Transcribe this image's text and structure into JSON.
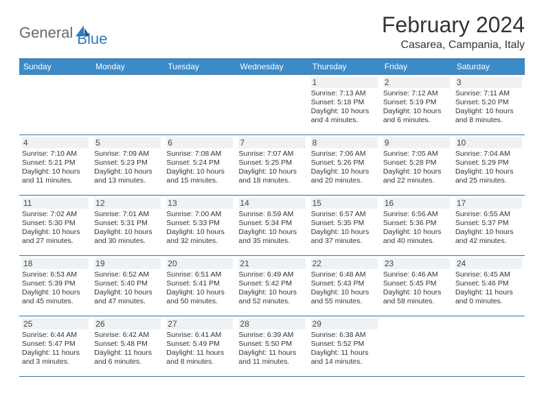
{
  "brand": {
    "part1": "General",
    "part2": "Blue"
  },
  "title": "February 2024",
  "location": "Casarea, Campania, Italy",
  "colors": {
    "header_bg": "#3b8bc9",
    "border": "#2f6fa3",
    "brand_blue": "#2f7bbf",
    "brand_gray": "#5f6a72"
  },
  "daynames": [
    "Sunday",
    "Monday",
    "Tuesday",
    "Wednesday",
    "Thursday",
    "Friday",
    "Saturday"
  ],
  "weeks": [
    [
      {
        "n": "",
        "sr": "",
        "ss": "",
        "d1": "",
        "d2": ""
      },
      {
        "n": "",
        "sr": "",
        "ss": "",
        "d1": "",
        "d2": ""
      },
      {
        "n": "",
        "sr": "",
        "ss": "",
        "d1": "",
        "d2": ""
      },
      {
        "n": "",
        "sr": "",
        "ss": "",
        "d1": "",
        "d2": ""
      },
      {
        "n": "1",
        "sr": "Sunrise: 7:13 AM",
        "ss": "Sunset: 5:18 PM",
        "d1": "Daylight: 10 hours",
        "d2": "and 4 minutes."
      },
      {
        "n": "2",
        "sr": "Sunrise: 7:12 AM",
        "ss": "Sunset: 5:19 PM",
        "d1": "Daylight: 10 hours",
        "d2": "and 6 minutes."
      },
      {
        "n": "3",
        "sr": "Sunrise: 7:11 AM",
        "ss": "Sunset: 5:20 PM",
        "d1": "Daylight: 10 hours",
        "d2": "and 8 minutes."
      }
    ],
    [
      {
        "n": "4",
        "sr": "Sunrise: 7:10 AM",
        "ss": "Sunset: 5:21 PM",
        "d1": "Daylight: 10 hours",
        "d2": "and 11 minutes."
      },
      {
        "n": "5",
        "sr": "Sunrise: 7:09 AM",
        "ss": "Sunset: 5:23 PM",
        "d1": "Daylight: 10 hours",
        "d2": "and 13 minutes."
      },
      {
        "n": "6",
        "sr": "Sunrise: 7:08 AM",
        "ss": "Sunset: 5:24 PM",
        "d1": "Daylight: 10 hours",
        "d2": "and 15 minutes."
      },
      {
        "n": "7",
        "sr": "Sunrise: 7:07 AM",
        "ss": "Sunset: 5:25 PM",
        "d1": "Daylight: 10 hours",
        "d2": "and 18 minutes."
      },
      {
        "n": "8",
        "sr": "Sunrise: 7:06 AM",
        "ss": "Sunset: 5:26 PM",
        "d1": "Daylight: 10 hours",
        "d2": "and 20 minutes."
      },
      {
        "n": "9",
        "sr": "Sunrise: 7:05 AM",
        "ss": "Sunset: 5:28 PM",
        "d1": "Daylight: 10 hours",
        "d2": "and 22 minutes."
      },
      {
        "n": "10",
        "sr": "Sunrise: 7:04 AM",
        "ss": "Sunset: 5:29 PM",
        "d1": "Daylight: 10 hours",
        "d2": "and 25 minutes."
      }
    ],
    [
      {
        "n": "11",
        "sr": "Sunrise: 7:02 AM",
        "ss": "Sunset: 5:30 PM",
        "d1": "Daylight: 10 hours",
        "d2": "and 27 minutes."
      },
      {
        "n": "12",
        "sr": "Sunrise: 7:01 AM",
        "ss": "Sunset: 5:31 PM",
        "d1": "Daylight: 10 hours",
        "d2": "and 30 minutes."
      },
      {
        "n": "13",
        "sr": "Sunrise: 7:00 AM",
        "ss": "Sunset: 5:33 PM",
        "d1": "Daylight: 10 hours",
        "d2": "and 32 minutes."
      },
      {
        "n": "14",
        "sr": "Sunrise: 6:59 AM",
        "ss": "Sunset: 5:34 PM",
        "d1": "Daylight: 10 hours",
        "d2": "and 35 minutes."
      },
      {
        "n": "15",
        "sr": "Sunrise: 6:57 AM",
        "ss": "Sunset: 5:35 PM",
        "d1": "Daylight: 10 hours",
        "d2": "and 37 minutes."
      },
      {
        "n": "16",
        "sr": "Sunrise: 6:56 AM",
        "ss": "Sunset: 5:36 PM",
        "d1": "Daylight: 10 hours",
        "d2": "and 40 minutes."
      },
      {
        "n": "17",
        "sr": "Sunrise: 6:55 AM",
        "ss": "Sunset: 5:37 PM",
        "d1": "Daylight: 10 hours",
        "d2": "and 42 minutes."
      }
    ],
    [
      {
        "n": "18",
        "sr": "Sunrise: 6:53 AM",
        "ss": "Sunset: 5:39 PM",
        "d1": "Daylight: 10 hours",
        "d2": "and 45 minutes."
      },
      {
        "n": "19",
        "sr": "Sunrise: 6:52 AM",
        "ss": "Sunset: 5:40 PM",
        "d1": "Daylight: 10 hours",
        "d2": "and 47 minutes."
      },
      {
        "n": "20",
        "sr": "Sunrise: 6:51 AM",
        "ss": "Sunset: 5:41 PM",
        "d1": "Daylight: 10 hours",
        "d2": "and 50 minutes."
      },
      {
        "n": "21",
        "sr": "Sunrise: 6:49 AM",
        "ss": "Sunset: 5:42 PM",
        "d1": "Daylight: 10 hours",
        "d2": "and 52 minutes."
      },
      {
        "n": "22",
        "sr": "Sunrise: 6:48 AM",
        "ss": "Sunset: 5:43 PM",
        "d1": "Daylight: 10 hours",
        "d2": "and 55 minutes."
      },
      {
        "n": "23",
        "sr": "Sunrise: 6:46 AM",
        "ss": "Sunset: 5:45 PM",
        "d1": "Daylight: 10 hours",
        "d2": "and 58 minutes."
      },
      {
        "n": "24",
        "sr": "Sunrise: 6:45 AM",
        "ss": "Sunset: 5:46 PM",
        "d1": "Daylight: 11 hours",
        "d2": "and 0 minutes."
      }
    ],
    [
      {
        "n": "25",
        "sr": "Sunrise: 6:44 AM",
        "ss": "Sunset: 5:47 PM",
        "d1": "Daylight: 11 hours",
        "d2": "and 3 minutes."
      },
      {
        "n": "26",
        "sr": "Sunrise: 6:42 AM",
        "ss": "Sunset: 5:48 PM",
        "d1": "Daylight: 11 hours",
        "d2": "and 6 minutes."
      },
      {
        "n": "27",
        "sr": "Sunrise: 6:41 AM",
        "ss": "Sunset: 5:49 PM",
        "d1": "Daylight: 11 hours",
        "d2": "and 8 minutes."
      },
      {
        "n": "28",
        "sr": "Sunrise: 6:39 AM",
        "ss": "Sunset: 5:50 PM",
        "d1": "Daylight: 11 hours",
        "d2": "and 11 minutes."
      },
      {
        "n": "29",
        "sr": "Sunrise: 6:38 AM",
        "ss": "Sunset: 5:52 PM",
        "d1": "Daylight: 11 hours",
        "d2": "and 14 minutes."
      },
      {
        "n": "",
        "sr": "",
        "ss": "",
        "d1": "",
        "d2": ""
      },
      {
        "n": "",
        "sr": "",
        "ss": "",
        "d1": "",
        "d2": ""
      }
    ]
  ]
}
